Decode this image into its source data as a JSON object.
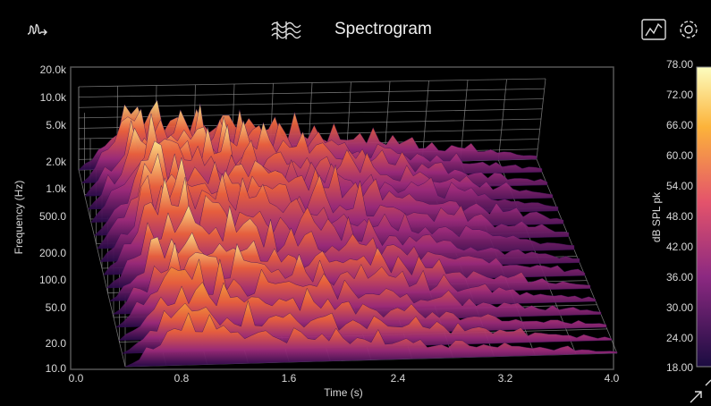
{
  "header": {
    "title": "Spectrogram"
  },
  "plot": {
    "y_axis_label": "Frequency (Hz)",
    "y_ticks": [
      "20.0k",
      "10.0k",
      "5.0k",
      "2.0k",
      "1.0k",
      "500.0",
      "200.0",
      "100.0",
      "50.0",
      "20.0",
      "10.0"
    ],
    "x_axis_label": "Time (s)",
    "x_ticks": [
      "0.0",
      "0.8",
      "1.6",
      "2.4",
      "3.2",
      "4.0"
    ]
  },
  "colorbar": {
    "label": "dB SPL pk",
    "ticks": [
      "78.00",
      "72.00",
      "66.00",
      "60.00",
      "54.00",
      "48.00",
      "42.00",
      "36.00",
      "30.00",
      "24.00",
      "18.00"
    ]
  }
}
